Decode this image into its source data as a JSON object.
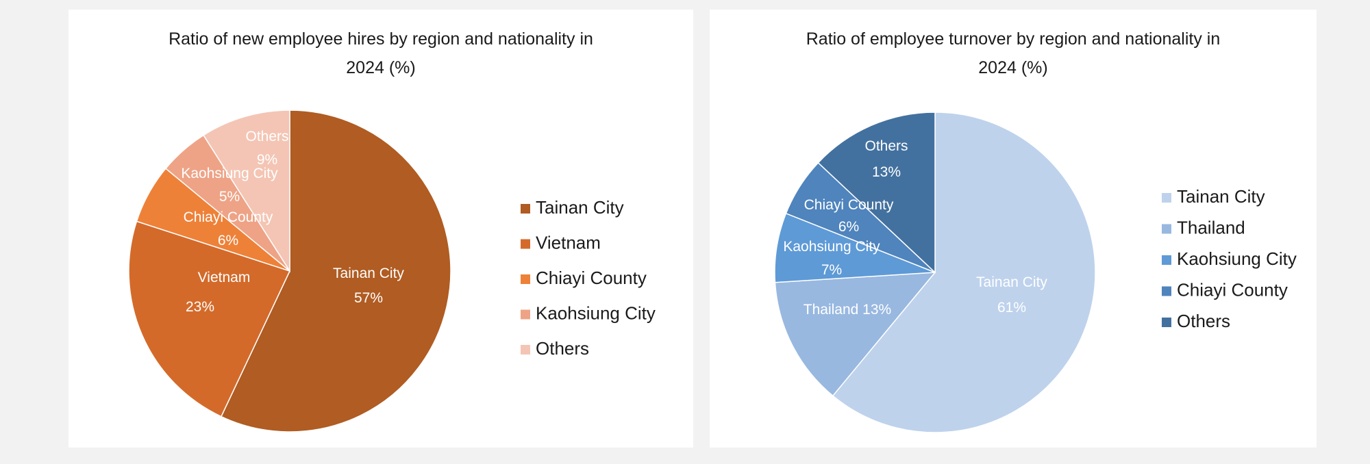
{
  "chart_data": [
    {
      "type": "pie",
      "title_line1": "Ratio of new employee hires by region and nationality in",
      "title_line2": "2024 (%)",
      "slices": [
        {
          "name": "Tainan City",
          "value": 57,
          "label": "57%",
          "color": "#b05c22"
        },
        {
          "name": "Vietnam",
          "value": 23,
          "label": "23%",
          "color": "#d46a2a"
        },
        {
          "name": "Chiayi County",
          "value": 6,
          "label": "6%",
          "color": "#ee8138"
        },
        {
          "name": "Kaohsiung City",
          "value": 5,
          "label": "5%",
          "color": "#eea386"
        },
        {
          "name": "Others",
          "value": 9,
          "label": "9%",
          "color": "#f4c5b4"
        }
      ],
      "legend_position": "right"
    },
    {
      "type": "pie",
      "title_line1": "Ratio of employee turnover by region and nationality in",
      "title_line2": "2024 (%)",
      "slices": [
        {
          "name": "Tainan City",
          "value": 61,
          "label": "61%",
          "color": "#bed2ec"
        },
        {
          "name": "Thailand",
          "value": 13,
          "label": "13%",
          "color": "#98b8e0"
        },
        {
          "name": "Kaohsiung City",
          "value": 7,
          "label": "7%",
          "color": "#5e9ad6"
        },
        {
          "name": "Chiayi County",
          "value": 6,
          "label": "6%",
          "color": "#4f84bd"
        },
        {
          "name": "Others",
          "value": 13,
          "label": "13%",
          "color": "#43719f"
        }
      ],
      "legend_position": "right"
    }
  ]
}
